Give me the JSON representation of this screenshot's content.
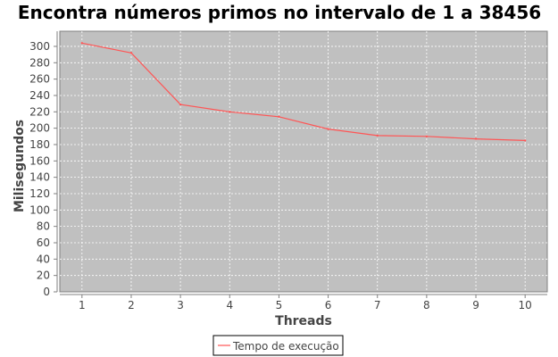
{
  "chart_data": {
    "type": "line",
    "title": "Encontra números primos no intervalo de 1 a 38456",
    "xlabel": "Threads",
    "ylabel": "Milisegundos",
    "x": [
      1,
      2,
      3,
      4,
      5,
      6,
      7,
      8,
      9,
      10
    ],
    "series": [
      {
        "name": "Tempo de execução",
        "values": [
          304,
          292,
          229,
          220,
          214,
          199,
          191,
          190,
          187,
          185
        ]
      }
    ],
    "xticks": [
      1,
      2,
      3,
      4,
      5,
      6,
      7,
      8,
      9,
      10
    ],
    "yticks": [
      0,
      20,
      40,
      60,
      80,
      100,
      120,
      140,
      160,
      180,
      200,
      220,
      240,
      260,
      280,
      300
    ],
    "xlim": [
      0.55,
      10.45
    ],
    "ylim": [
      0,
      318.5
    ],
    "grid": true,
    "legend": "bottom-center",
    "colors": {
      "series": "#ff5555",
      "plot_background": "#c0c0c0",
      "grid": "#ffffff",
      "axis": "#808080",
      "text": "#444444",
      "title": "#000000"
    }
  }
}
